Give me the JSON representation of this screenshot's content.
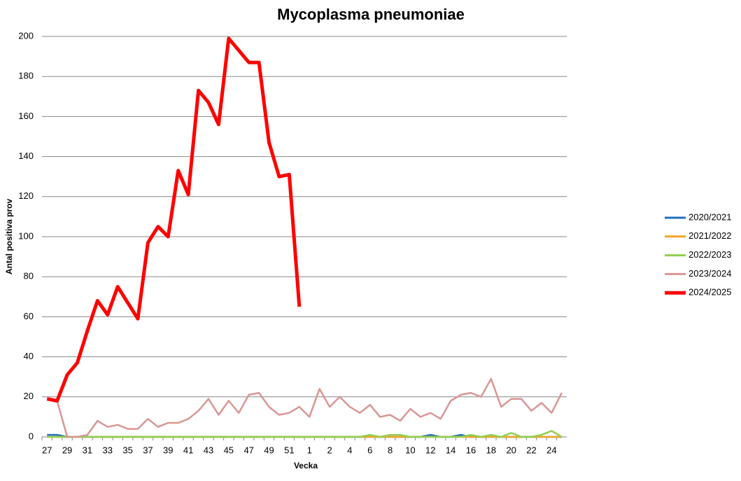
{
  "chart_data": {
    "type": "line",
    "title": "Mycoplasma pneumoniae",
    "x_label": "Vecka",
    "y_label": "Antal positiva prov",
    "categories": [
      "27",
      null,
      "29",
      null,
      "31",
      null,
      "33",
      null,
      "35",
      null,
      "37",
      null,
      "39",
      null,
      "41",
      null,
      "43",
      null,
      "45",
      null,
      "47",
      null,
      "49",
      null,
      "51",
      null,
      "1",
      null,
      "2",
      null,
      "4",
      null,
      "6",
      null,
      "8",
      null,
      "10",
      null,
      "12",
      null,
      "14",
      null,
      "16",
      null,
      "18",
      null,
      "20",
      null,
      "22",
      null,
      "24",
      null
    ],
    "ylim": [
      0,
      200
    ],
    "yticks": [
      0,
      20,
      40,
      60,
      80,
      100,
      120,
      140,
      160,
      180,
      200
    ],
    "grid": true,
    "legend": "right",
    "series": [
      {
        "name": "2020/2021",
        "color": "#1f6fbf",
        "values": [
          1,
          1,
          0,
          0,
          0,
          0,
          0,
          0,
          0,
          0,
          0,
          0,
          0,
          0,
          0,
          0,
          0,
          0,
          0,
          0,
          0,
          0,
          0,
          0,
          0,
          0,
          0,
          0,
          0,
          0,
          0,
          0,
          0,
          0,
          0,
          0,
          0,
          0,
          1,
          0,
          0,
          1,
          0,
          0,
          0,
          0,
          0,
          0,
          0,
          0,
          0,
          0
        ]
      },
      {
        "name": "2021/2022",
        "color": "#f5a623",
        "values": [
          0,
          0,
          0,
          0,
          0,
          0,
          0,
          0,
          0,
          0,
          0,
          0,
          0,
          0,
          0,
          0,
          0,
          0,
          0,
          0,
          0,
          0,
          0,
          0,
          0,
          0,
          0,
          0,
          0,
          0,
          0,
          0,
          0,
          0,
          0,
          0,
          0,
          0,
          0,
          0,
          0,
          0,
          0,
          0,
          0,
          0,
          0,
          0,
          0,
          0,
          0,
          0
        ]
      },
      {
        "name": "2022/2023",
        "color": "#92d050",
        "values": [
          0,
          0,
          0,
          0,
          0,
          0,
          0,
          0,
          0,
          0,
          0,
          0,
          0,
          0,
          0,
          0,
          0,
          0,
          0,
          0,
          0,
          0,
          0,
          0,
          0,
          0,
          0,
          0,
          0,
          0,
          0,
          0,
          1,
          0,
          1,
          1,
          0,
          0,
          0,
          0,
          0,
          0,
          1,
          0,
          1,
          0,
          2,
          0,
          0,
          1,
          3,
          0
        ]
      },
      {
        "name": "2023/2024",
        "color": "#d99694",
        "values": [
          19,
          18,
          0,
          0,
          1,
          8,
          5,
          6,
          4,
          4,
          9,
          5,
          7,
          7,
          9,
          13,
          19,
          11,
          18,
          12,
          21,
          22,
          15,
          11,
          12,
          15,
          10,
          24,
          15,
          20,
          15,
          12,
          16,
          10,
          11,
          8,
          14,
          10,
          12,
          9,
          18,
          21,
          22,
          20,
          29,
          15,
          19,
          19,
          13,
          17,
          12,
          22
        ]
      },
      {
        "name": "2024/2025",
        "color": "#ff0000",
        "values": [
          19,
          18,
          31,
          37,
          53,
          68,
          61,
          75,
          67,
          59,
          97,
          105,
          100,
          133,
          121,
          173,
          167,
          156,
          199,
          193,
          187,
          187,
          147,
          130,
          131,
          65,
          null,
          null,
          null,
          null,
          null,
          null,
          null,
          null,
          null,
          null,
          null,
          null,
          null,
          null,
          null,
          null,
          null,
          null,
          null,
          null,
          null,
          null,
          null,
          null,
          null,
          null
        ]
      }
    ]
  }
}
